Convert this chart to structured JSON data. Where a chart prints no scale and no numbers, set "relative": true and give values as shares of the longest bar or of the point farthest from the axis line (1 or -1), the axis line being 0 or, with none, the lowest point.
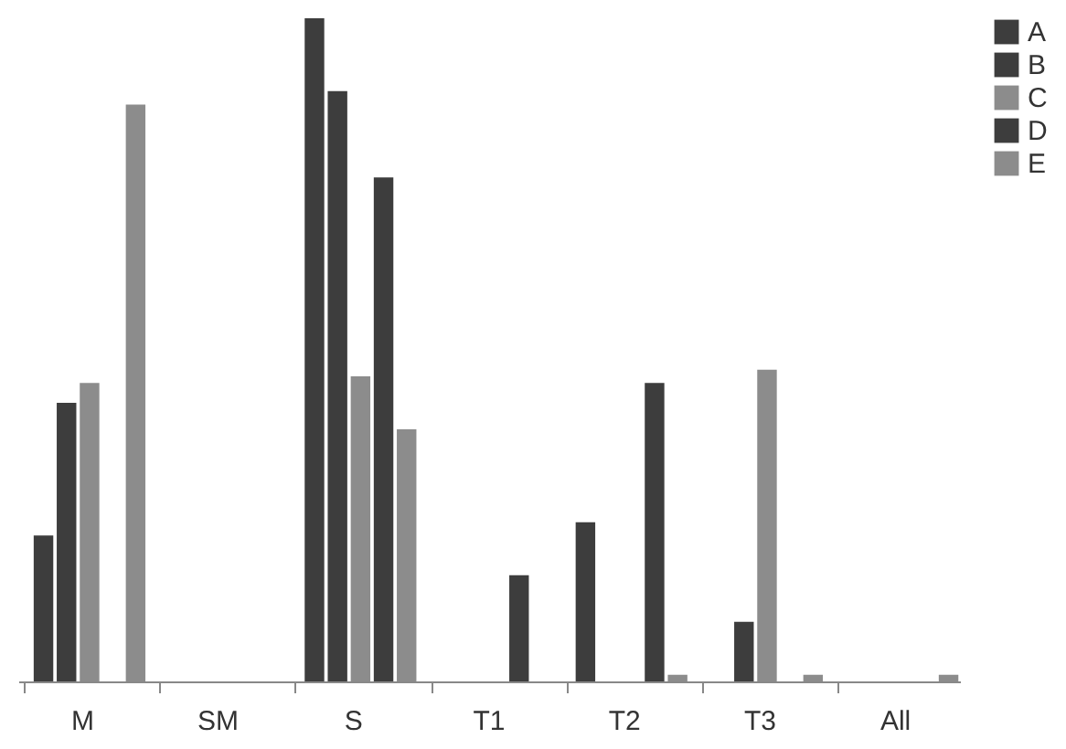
{
  "chart_data": {
    "type": "bar",
    "relative": true,
    "categories": [
      "M",
      "SM",
      "S",
      "T1",
      "T2",
      "T3",
      "All"
    ],
    "series": [
      {
        "name": "A",
        "color": "#3d3d3d",
        "values": [
          0.22,
          null,
          1,
          null,
          0.24,
          null,
          null
        ]
      },
      {
        "name": "B",
        "color": "#3d3d3d",
        "values": [
          0.42,
          null,
          0.89,
          null,
          null,
          0.09,
          null
        ]
      },
      {
        "name": "C",
        "color": "#8c8c8c",
        "values": [
          0.45,
          null,
          0.46,
          null,
          null,
          0.47,
          null
        ]
      },
      {
        "name": "D",
        "color": "#3d3d3d",
        "values": [
          null,
          null,
          0.76,
          0.16,
          0.45,
          null,
          null
        ]
      },
      {
        "name": "E",
        "color": "#8c8c8c",
        "values": [
          0.87,
          null,
          0.38,
          null,
          0.01,
          0.01,
          0.01
        ]
      }
    ],
    "legend": "right"
  }
}
